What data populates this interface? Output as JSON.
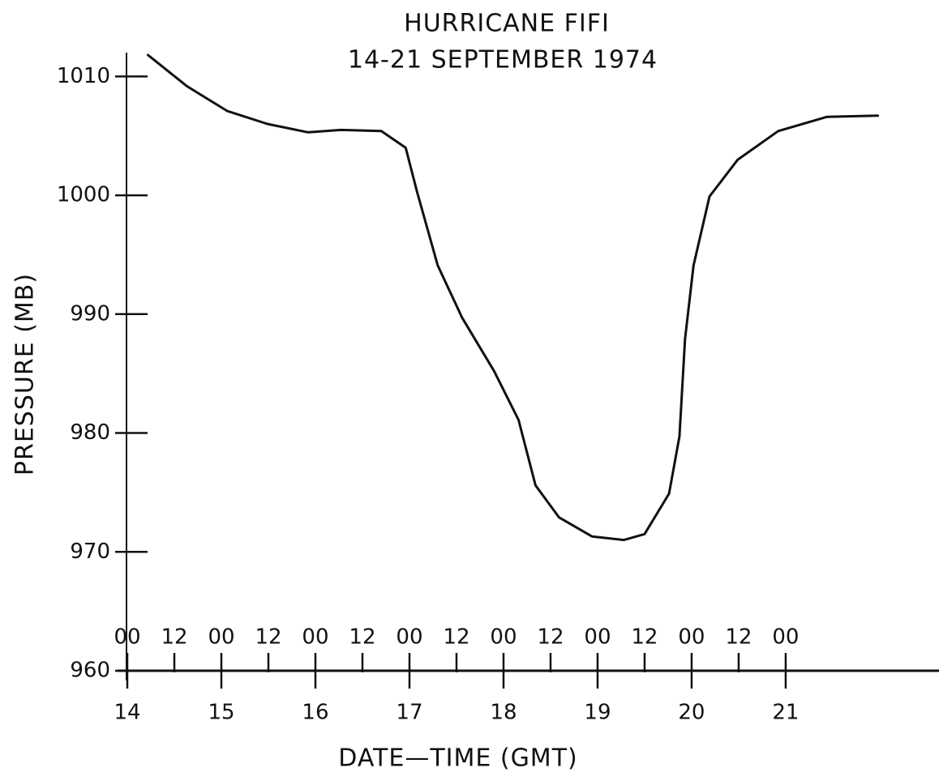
{
  "chart_data": {
    "type": "line",
    "title": "HURRICANE FIFI",
    "subtitle": "14-21 SEPTEMBER 1974",
    "y_label": "PRESSURE (MB)",
    "x_label": "DATE—TIME (GMT)",
    "color": "#111111",
    "grid": false,
    "x": [
      14.22,
      14.63,
      15.06,
      15.49,
      15.92,
      16.27,
      16.7,
      16.96,
      17.08,
      17.3,
      17.56,
      17.9,
      18.16,
      18.34,
      18.59,
      18.94,
      19.28,
      19.5,
      19.76,
      19.87,
      19.93,
      20.02,
      20.19,
      20.49,
      20.92,
      21.44,
      21.98
    ],
    "values": [
      1011.8,
      1009.2,
      1007.1,
      1006.0,
      1005.3,
      1005.5,
      1005.4,
      1004.0,
      1000.3,
      994.1,
      989.7,
      985.2,
      981.1,
      975.6,
      972.9,
      971.3,
      971.0,
      971.5,
      974.9,
      979.7,
      987.9,
      994.1,
      999.9,
      1003.0,
      1005.4,
      1006.6,
      1006.7
    ],
    "xlim": [
      14,
      22.63
    ],
    "ylim": [
      960,
      1012
    ],
    "yticks": [
      960,
      970,
      980,
      990,
      1000,
      1010
    ],
    "xticks": [
      {
        "value": 14,
        "label": "00"
      },
      {
        "value": 14.5,
        "label": "12"
      },
      {
        "value": 15,
        "label": "00"
      },
      {
        "value": 15.5,
        "label": "12"
      },
      {
        "value": 16,
        "label": "00"
      },
      {
        "value": 16.5,
        "label": "12"
      },
      {
        "value": 17,
        "label": "00"
      },
      {
        "value": 17.5,
        "label": "12"
      },
      {
        "value": 18,
        "label": "00"
      },
      {
        "value": 18.5,
        "label": "12"
      },
      {
        "value": 19,
        "label": "00"
      },
      {
        "value": 19.5,
        "label": "12"
      },
      {
        "value": 20,
        "label": "00"
      },
      {
        "value": 20.5,
        "label": "12"
      },
      {
        "value": 21,
        "label": "00"
      }
    ],
    "xday_ticks": [
      14,
      15,
      16,
      17,
      18,
      19,
      20,
      21
    ]
  }
}
